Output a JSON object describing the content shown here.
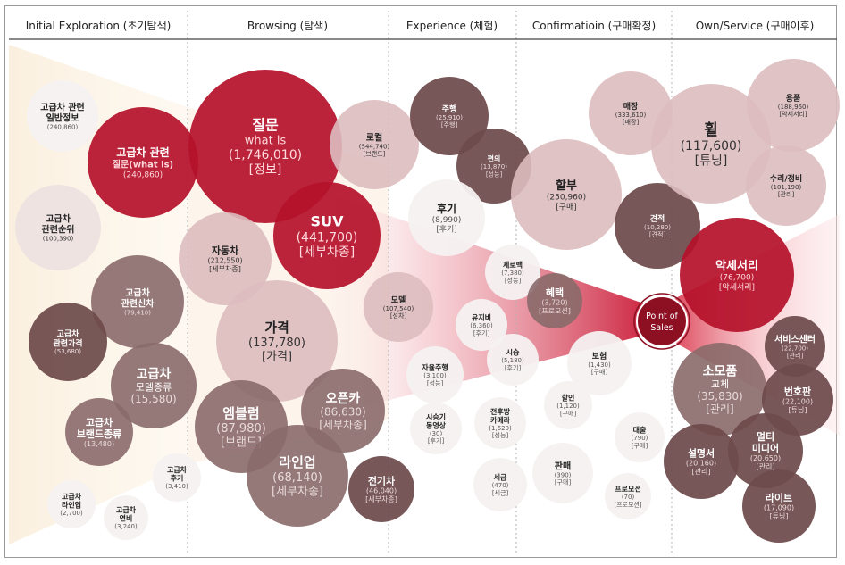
{
  "stages": [
    {
      "label": "Initial Exploration (초기탐색)"
    },
    {
      "label": "Browsing (탐색)"
    },
    {
      "label": "Experience (체험)"
    },
    {
      "label": "Confirmatioin (구매확정)"
    },
    {
      "label": "Own/Service (구매이후)"
    }
  ],
  "point_of_sales": {
    "line1": "Point of",
    "line2": "Sales"
  },
  "colors": {
    "crimson": "#b5122b",
    "crimson_light": "#c8203a",
    "dark_brown": "#6e4a4b",
    "mid_brown": "#8a6a6a",
    "pink": "#ddbcbf",
    "light": "#eee1e2",
    "white_bubble": "#f6f1f1",
    "dark_text": "#222222",
    "pink_text": "#ffd9dd",
    "beige": "#fbf0df"
  },
  "bubbles": [
    {
      "id": "b1",
      "title": "고급차 관련",
      "sub": "일반정보",
      "value": "(240,860)",
      "tag": ""
    },
    {
      "id": "b2",
      "title": "고급차 관련",
      "sub": "질문(what is)",
      "value": "(240,860)",
      "tag": ""
    },
    {
      "id": "b3",
      "title": "고급차",
      "sub": "관련순위",
      "value": "(100,390)",
      "tag": ""
    },
    {
      "id": "b4",
      "title": "고급차",
      "sub": "관련신차",
      "value": "(79,410)",
      "tag": ""
    },
    {
      "id": "b5",
      "title": "고급차",
      "sub": "관련가격",
      "value": "(53,680)",
      "tag": ""
    },
    {
      "id": "b6",
      "title": "고급차",
      "sub": "모델종류",
      "value": "(15,580)",
      "tag": ""
    },
    {
      "id": "b7",
      "title": "고급차",
      "sub": "브랜드종류",
      "value": "(13,480)",
      "tag": ""
    },
    {
      "id": "b8",
      "title": "고급차",
      "sub": "후기",
      "value": "(3,410)",
      "tag": ""
    },
    {
      "id": "b9",
      "title": "고급차",
      "sub": "라인업",
      "value": "(2,700)",
      "tag": ""
    },
    {
      "id": "b10",
      "title": "고급차",
      "sub": "연비",
      "value": "(3,240)",
      "tag": ""
    },
    {
      "id": "b11",
      "title": "질문",
      "sub": "what is",
      "value": "(1,746,010)",
      "tag": "[정보]"
    },
    {
      "id": "b12",
      "title": "로컬",
      "sub": "",
      "value": "(544,740)",
      "tag": "[브랜드]"
    },
    {
      "id": "b13",
      "title": "자동차",
      "sub": "",
      "value": "(212,550)",
      "tag": "[세부차종]"
    },
    {
      "id": "b14",
      "title": "SUV",
      "sub": "",
      "value": "(441,700)",
      "tag": "[세부차종]"
    },
    {
      "id": "b15",
      "title": "가격",
      "sub": "",
      "value": "(137,780)",
      "tag": "[가격]"
    },
    {
      "id": "b16",
      "title": "오픈카",
      "sub": "",
      "value": "(86,630)",
      "tag": "[세부차종]"
    },
    {
      "id": "b17",
      "title": "엠블럼",
      "sub": "",
      "value": "(87,980)",
      "tag": "[브랜드]"
    },
    {
      "id": "b18",
      "title": "라인업",
      "sub": "",
      "value": "(68,140)",
      "tag": "[세부차종]"
    },
    {
      "id": "b19",
      "title": "전기차",
      "sub": "",
      "value": "(46,040)",
      "tag": "[세부차종]"
    },
    {
      "id": "b20",
      "title": "주행",
      "sub": "",
      "value": "(25,910)",
      "tag": "[주행]"
    },
    {
      "id": "b21",
      "title": "편의",
      "sub": "",
      "value": "(13,870)",
      "tag": "[성능]"
    },
    {
      "id": "b22",
      "title": "후기",
      "sub": "",
      "value": "(8,990)",
      "tag": "[후기]"
    },
    {
      "id": "b23",
      "title": "모델",
      "sub": "",
      "value": "(107,540)",
      "tag": "[성차]"
    },
    {
      "id": "b24",
      "title": "제로백",
      "sub": "",
      "value": "(7,380)",
      "tag": "[성능]"
    },
    {
      "id": "b25",
      "title": "혜택",
      "sub": "",
      "value": "(3,720)",
      "tag": "[프로모션]"
    },
    {
      "id": "b26",
      "title": "유지비",
      "sub": "",
      "value": "(6,360)",
      "tag": "[후기]"
    },
    {
      "id": "b27",
      "title": "자율주행",
      "sub": "",
      "value": "(3,100)",
      "tag": "[성능]"
    },
    {
      "id": "b28",
      "title": "시승",
      "sub": "",
      "value": "(5,180)",
      "tag": "[후기]"
    },
    {
      "id": "b29",
      "title": "시승기",
      "sub": "동영상",
      "value": "(30)",
      "tag": "[후기]"
    },
    {
      "id": "b30",
      "title": "전후방",
      "sub": "카메라",
      "value": "(1,620)",
      "tag": "[성능]"
    },
    {
      "id": "b31",
      "title": "세금",
      "sub": "",
      "value": "(470)",
      "tag": "[세금]"
    },
    {
      "id": "b32",
      "title": "매장",
      "sub": "",
      "value": "(333,610)",
      "tag": "[매장]"
    },
    {
      "id": "b33",
      "title": "할부",
      "sub": "",
      "value": "(250,960)",
      "tag": "[구매]"
    },
    {
      "id": "b34",
      "title": "견적",
      "sub": "",
      "value": "(10,280)",
      "tag": "[견적]"
    },
    {
      "id": "b35",
      "title": "보험",
      "sub": "",
      "value": "(1,430)",
      "tag": "[구매]"
    },
    {
      "id": "b36",
      "title": "할인",
      "sub": "",
      "value": "(1,120)",
      "tag": "[구매]"
    },
    {
      "id": "b37",
      "title": "대출",
      "sub": "",
      "value": "(790)",
      "tag": "[구매]"
    },
    {
      "id": "b38",
      "title": "판매",
      "sub": "",
      "value": "(390)",
      "tag": "[구매]"
    },
    {
      "id": "b39",
      "title": "프로모션",
      "sub": "",
      "value": "(70)",
      "tag": "[프로모션]"
    },
    {
      "id": "b40",
      "title": "용품",
      "sub": "",
      "value": "(188,960)",
      "tag": "[악세서리]"
    },
    {
      "id": "b41",
      "title": "휠",
      "sub": "",
      "value": "(117,600)",
      "tag": "[튜닝]"
    },
    {
      "id": "b42",
      "title": "수리/정비",
      "sub": "",
      "value": "(101,190)",
      "tag": "[관리]"
    },
    {
      "id": "b43",
      "title": "악세서리",
      "sub": "",
      "value": "(76,700)",
      "tag": "[악세서리]"
    },
    {
      "id": "b44",
      "title": "서비스센터",
      "sub": "",
      "value": "(22,700)",
      "tag": "[관리]"
    },
    {
      "id": "b45",
      "title": "소모품",
      "sub": "교체",
      "value": "(35,830)",
      "tag": "[관리]"
    },
    {
      "id": "b46",
      "title": "번호판",
      "sub": "",
      "value": "(22,100)",
      "tag": "[튜닝]"
    },
    {
      "id": "b47",
      "title": "설명서",
      "sub": "",
      "value": "(20,160)",
      "tag": "[관리]"
    },
    {
      "id": "b48",
      "title": "멀티",
      "sub": "미디어",
      "value": "(20,650)",
      "tag": "[관리]"
    },
    {
      "id": "b49",
      "title": "라이트",
      "sub": "",
      "value": "(17,090)",
      "tag": "[튜닝]"
    }
  ]
}
